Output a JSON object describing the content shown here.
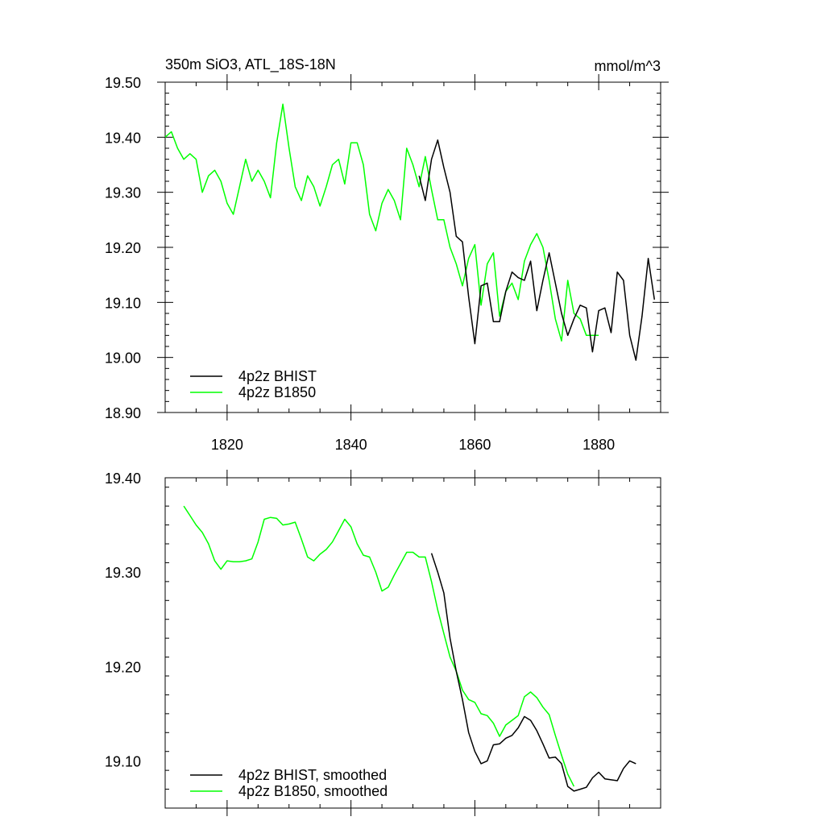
{
  "chart_data": [
    {
      "type": "line",
      "title": "350m SiO3, ATL_18S-18N",
      "units": "mmol/m^3",
      "xlim": [
        1810,
        1890
      ],
      "ylim": [
        18.9,
        19.5
      ],
      "x_ticks": [
        1820,
        1840,
        1860,
        1880
      ],
      "y_ticks": [
        "18.90",
        "19.00",
        "19.10",
        "19.20",
        "19.30",
        "19.40",
        "19.50"
      ],
      "legend_position": "bottom-left",
      "series": [
        {
          "name": "4p2z BHIST",
          "color": "#000000",
          "x": [
            1851,
            1852,
            1853,
            1854,
            1855,
            1856,
            1857,
            1858,
            1859,
            1860,
            1861,
            1862,
            1863,
            1864,
            1865,
            1866,
            1867,
            1868,
            1869,
            1870,
            1871,
            1872,
            1873,
            1874,
            1875,
            1876,
            1877,
            1878,
            1879,
            1880,
            1881,
            1882,
            1883,
            1884,
            1885,
            1886,
            1887,
            1888,
            1889
          ],
          "y": [
            19.33,
            19.285,
            19.36,
            19.395,
            19.345,
            19.3,
            19.22,
            19.21,
            19.11,
            19.025,
            19.13,
            19.135,
            19.065,
            19.065,
            19.12,
            19.155,
            19.145,
            19.14,
            19.175,
            19.085,
            19.14,
            19.19,
            19.135,
            19.08,
            19.04,
            19.07,
            19.095,
            19.09,
            19.01,
            19.085,
            19.09,
            19.045,
            19.155,
            19.14,
            19.04,
            18.995,
            19.075,
            19.18,
            19.105
          ]
        },
        {
          "name": "4p2z B1850",
          "color": "#00ff00",
          "x": [
            1810,
            1811,
            1812,
            1813,
            1814,
            1815,
            1816,
            1817,
            1818,
            1819,
            1820,
            1821,
            1822,
            1823,
            1824,
            1825,
            1826,
            1827,
            1828,
            1829,
            1830,
            1831,
            1832,
            1833,
            1834,
            1835,
            1836,
            1837,
            1838,
            1839,
            1840,
            1841,
            1842,
            1843,
            1844,
            1845,
            1846,
            1847,
            1848,
            1849,
            1850,
            1851,
            1852,
            1853,
            1854,
            1855,
            1856,
            1857,
            1858,
            1859,
            1860,
            1861,
            1862,
            1863,
            1864,
            1865,
            1866,
            1867,
            1868,
            1869,
            1870,
            1871,
            1872,
            1873,
            1874,
            1875,
            1876,
            1877,
            1878,
            1879,
            1880
          ],
          "y": [
            19.4,
            19.41,
            19.38,
            19.36,
            19.37,
            19.36,
            19.3,
            19.33,
            19.34,
            19.32,
            19.28,
            19.26,
            19.31,
            19.36,
            19.32,
            19.34,
            19.32,
            19.29,
            19.39,
            19.46,
            19.38,
            19.31,
            19.285,
            19.33,
            19.31,
            19.275,
            19.31,
            19.35,
            19.36,
            19.315,
            19.39,
            19.39,
            19.35,
            19.26,
            19.23,
            19.28,
            19.305,
            19.285,
            19.25,
            19.38,
            19.35,
            19.31,
            19.365,
            19.305,
            19.25,
            19.25,
            19.2,
            19.17,
            19.13,
            19.18,
            19.205,
            19.095,
            19.17,
            19.19,
            19.075,
            19.12,
            19.135,
            19.105,
            19.175,
            19.205,
            19.225,
            19.2,
            19.14,
            19.07,
            19.03,
            19.14,
            19.08,
            19.07,
            19.04,
            19.04,
            19.04
          ]
        }
      ]
    },
    {
      "type": "line",
      "xlim": [
        1810,
        1890
      ],
      "ylim": [
        19.05,
        19.4
      ],
      "x_ticks": [
        1820,
        1840,
        1860,
        1880
      ],
      "y_ticks": [
        "19.10",
        "19.20",
        "19.30",
        "19.40"
      ],
      "legend_position": "bottom-left",
      "series": [
        {
          "name": "4p2z BHIST, smoothed",
          "color": "#000000",
          "x": [
            1853,
            1854,
            1855,
            1856,
            1857,
            1858,
            1859,
            1860,
            1861,
            1862,
            1863,
            1864,
            1865,
            1866,
            1867,
            1868,
            1869,
            1870,
            1871,
            1872,
            1873,
            1874,
            1875,
            1876,
            1877,
            1878,
            1879,
            1880,
            1881,
            1882,
            1883,
            1884,
            1885,
            1886
          ],
          "y": [
            19.32,
            19.3,
            19.278,
            19.23,
            19.195,
            19.165,
            19.13,
            19.11,
            19.097,
            19.1,
            19.117,
            19.118,
            19.124,
            19.127,
            19.135,
            19.147,
            19.143,
            19.132,
            19.118,
            19.103,
            19.104,
            19.097,
            19.073,
            19.068,
            19.07,
            19.072,
            19.082,
            19.088,
            19.081,
            19.08,
            19.079,
            19.092,
            19.1,
            19.097
          ]
        },
        {
          "name": "4p2z B1850, smoothed",
          "color": "#00ff00",
          "x": [
            1813,
            1814,
            1815,
            1816,
            1817,
            1818,
            1819,
            1820,
            1821,
            1822,
            1823,
            1824,
            1825,
            1826,
            1827,
            1828,
            1829,
            1830,
            1831,
            1832,
            1833,
            1834,
            1835,
            1836,
            1837,
            1838,
            1839,
            1840,
            1841,
            1842,
            1843,
            1844,
            1845,
            1846,
            1847,
            1848,
            1849,
            1850,
            1851,
            1852,
            1853,
            1854,
            1855,
            1856,
            1857,
            1858,
            1859,
            1860,
            1861,
            1862,
            1863,
            1864,
            1865,
            1866,
            1867,
            1868,
            1869,
            1870,
            1871,
            1872,
            1873,
            1874,
            1875,
            1876
          ],
          "y": [
            19.37,
            19.36,
            19.35,
            19.342,
            19.33,
            19.312,
            19.303,
            19.312,
            19.311,
            19.311,
            19.312,
            19.314,
            19.332,
            19.356,
            19.358,
            19.357,
            19.35,
            19.351,
            19.353,
            19.335,
            19.316,
            19.312,
            19.319,
            19.324,
            19.332,
            19.344,
            19.356,
            19.348,
            19.33,
            19.318,
            19.316,
            19.3,
            19.28,
            19.284,
            19.297,
            19.309,
            19.321,
            19.321,
            19.316,
            19.316,
            19.29,
            19.26,
            19.235,
            19.21,
            19.195,
            19.175,
            19.165,
            19.162,
            19.15,
            19.148,
            19.14,
            19.126,
            19.138,
            19.143,
            19.148,
            19.168,
            19.173,
            19.167,
            19.157,
            19.149,
            19.127,
            19.106,
            19.086,
            19.073
          ]
        }
      ]
    }
  ]
}
